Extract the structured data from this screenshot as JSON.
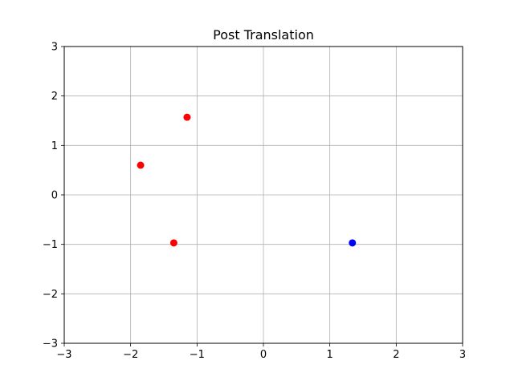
{
  "chart_data": {
    "type": "scatter",
    "title": "Post Translation",
    "xlabel": "",
    "ylabel": "",
    "xlim": [
      -3,
      3
    ],
    "ylim": [
      -3,
      3
    ],
    "grid": true,
    "xticks": [
      -3,
      -2,
      -1,
      0,
      1,
      2,
      3
    ],
    "yticks": [
      -3,
      -2,
      -1,
      0,
      1,
      2,
      3
    ],
    "xtick_labels": [
      "−3",
      "−2",
      "−1",
      "0",
      "1",
      "2",
      "3"
    ],
    "ytick_labels": [
      "−3",
      "−2",
      "−1",
      "0",
      "1",
      "2",
      "3"
    ],
    "series": [
      {
        "color": "#ff0000",
        "points": [
          {
            "x": -1.15,
            "y": 1.57
          },
          {
            "x": -1.85,
            "y": 0.6
          },
          {
            "x": -1.35,
            "y": -0.97
          }
        ]
      },
      {
        "color": "#0000ff",
        "points": [
          {
            "x": 1.34,
            "y": -0.97
          }
        ]
      }
    ]
  }
}
